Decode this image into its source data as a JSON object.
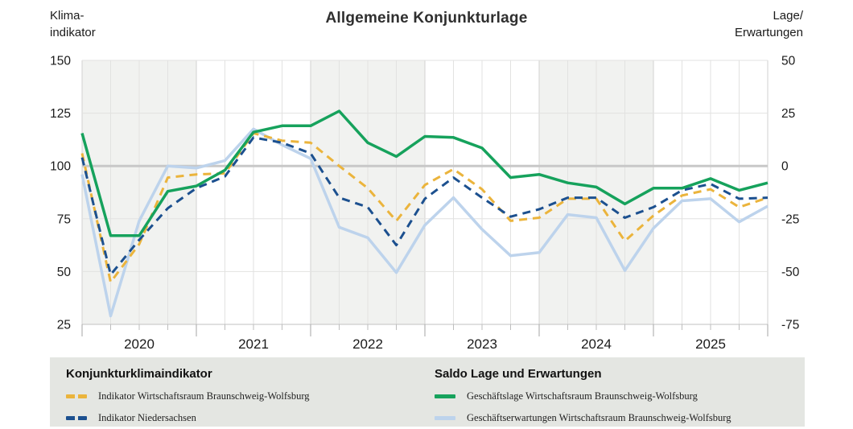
{
  "header": {
    "left_axis_label_line1": "Klima-",
    "left_axis_label_line2": "indikator",
    "title": "Allgemeine Konjunkturlage",
    "right_axis_label_line1": "Lage/",
    "right_axis_label_line2": "Erwartungen"
  },
  "chart_data": {
    "type": "line",
    "title": "Allgemeine Konjunkturlage",
    "left_axis": {
      "label": "Klima-indikator",
      "ticks": [
        150,
        125,
        100,
        75,
        50,
        25
      ],
      "range": [
        25,
        150
      ]
    },
    "right_axis": {
      "label": "Lage/Erwartungen",
      "ticks": [
        50,
        25,
        0,
        -25,
        -50,
        -75
      ],
      "range": [
        -75,
        50
      ]
    },
    "x_axis": {
      "year_labels": [
        "2020",
        "2021",
        "2022",
        "2023",
        "2024",
        "2025"
      ],
      "quarters_per_year": 4,
      "shaded_year_indices": [
        0,
        2,
        4
      ],
      "grid": true
    },
    "x": [
      "2020-Q1",
      "2020-Q2",
      "2020-Q3",
      "2020-Q4",
      "2021-Q1",
      "2021-Q2",
      "2021-Q3",
      "2021-Q4",
      "2022-Q1",
      "2022-Q2",
      "2022-Q3",
      "2022-Q4",
      "2023-Q1",
      "2023-Q2",
      "2023-Q3",
      "2023-Q4",
      "2024-Q1",
      "2024-Q2",
      "2024-Q3",
      "2024-Q4",
      "2025-Q1",
      "2025-Q2",
      "2025-Q3",
      "2025-Q4",
      "2026-Q1"
    ],
    "series": [
      {
        "name": "Indikator Wirtschaftsraum Braunschweig-Wolfsburg",
        "axis": "left",
        "color": "#ebb43c",
        "dash": true,
        "values": [
          106,
          45,
          63,
          94.5,
          96,
          96.5,
          115.5,
          112,
          111,
          100,
          89.5,
          74,
          91,
          98.5,
          89,
          74,
          75.5,
          84.5,
          84.5,
          64.5,
          76.5,
          86,
          89,
          80.5,
          85
        ]
      },
      {
        "name": "Indikator Niedersachsen",
        "axis": "left",
        "color": "#1c508f",
        "dash": true,
        "values": [
          104,
          48.5,
          65,
          80,
          89.5,
          95,
          113.5,
          111,
          106,
          85,
          80.5,
          62.5,
          84.5,
          94.5,
          85,
          76,
          79.5,
          85,
          85,
          75.5,
          80.5,
          88.5,
          91.5,
          84.5,
          85
        ]
      },
      {
        "name": "Geschäftslage Wirtschaftsraum Braunschweig-Wolfsburg",
        "axis": "right",
        "color": "#16a25c",
        "dash": false,
        "values": [
          15.5,
          -33,
          -33,
          -12,
          -9.5,
          -2,
          16,
          19,
          19,
          26,
          11,
          4.5,
          14,
          13.5,
          8.5,
          -5.5,
          -4,
          -8,
          -10,
          -18,
          -10.5,
          -10.5,
          -6,
          -11.5,
          -8
        ]
      },
      {
        "name": "Geschäftserwartungen Wirtschaftsraum Braunschweig-Wolfsburg",
        "axis": "right",
        "color": "#bdd3ec",
        "dash": false,
        "values": [
          -4,
          -71,
          -26,
          0,
          -1,
          2.5,
          17.5,
          10,
          3.5,
          -29,
          -34,
          -50.5,
          -28,
          -15,
          -30,
          -42.5,
          -41,
          -23,
          -24.5,
          -49.5,
          -29.5,
          -16.5,
          -15.5,
          -26.5,
          -19
        ]
      }
    ],
    "style": {
      "band_fill": "#f1f2f0",
      "grid_color": "#e2e2e1",
      "year_grid_color": "#d2d2d1",
      "zero_line_color": "#c8c8c8",
      "axis_line_color": "#c2c2c2",
      "minor_tick_color": "#bdbdbd",
      "year_tick_color": "#a6a6a6",
      "tick_label_color": "#1a1a1a"
    }
  },
  "legend": {
    "groups": [
      {
        "heading": "Konjunkturklimaindikator",
        "items": [
          {
            "label": "Indikator Wirtschaftsraum Braunschweig-Wolfsburg",
            "series_index": 0
          },
          {
            "label": "Indikator Niedersachsen",
            "series_index": 1
          }
        ]
      },
      {
        "heading": "Saldo Lage und Erwartungen",
        "items": [
          {
            "label": "Geschäftslage Wirtschaftsraum Braunschweig-Wolfsburg",
            "series_index": 2
          },
          {
            "label": "Geschäftserwartungen Wirtschaftsraum Braunschweig-Wolfsburg",
            "series_index": 3
          }
        ]
      }
    ]
  }
}
